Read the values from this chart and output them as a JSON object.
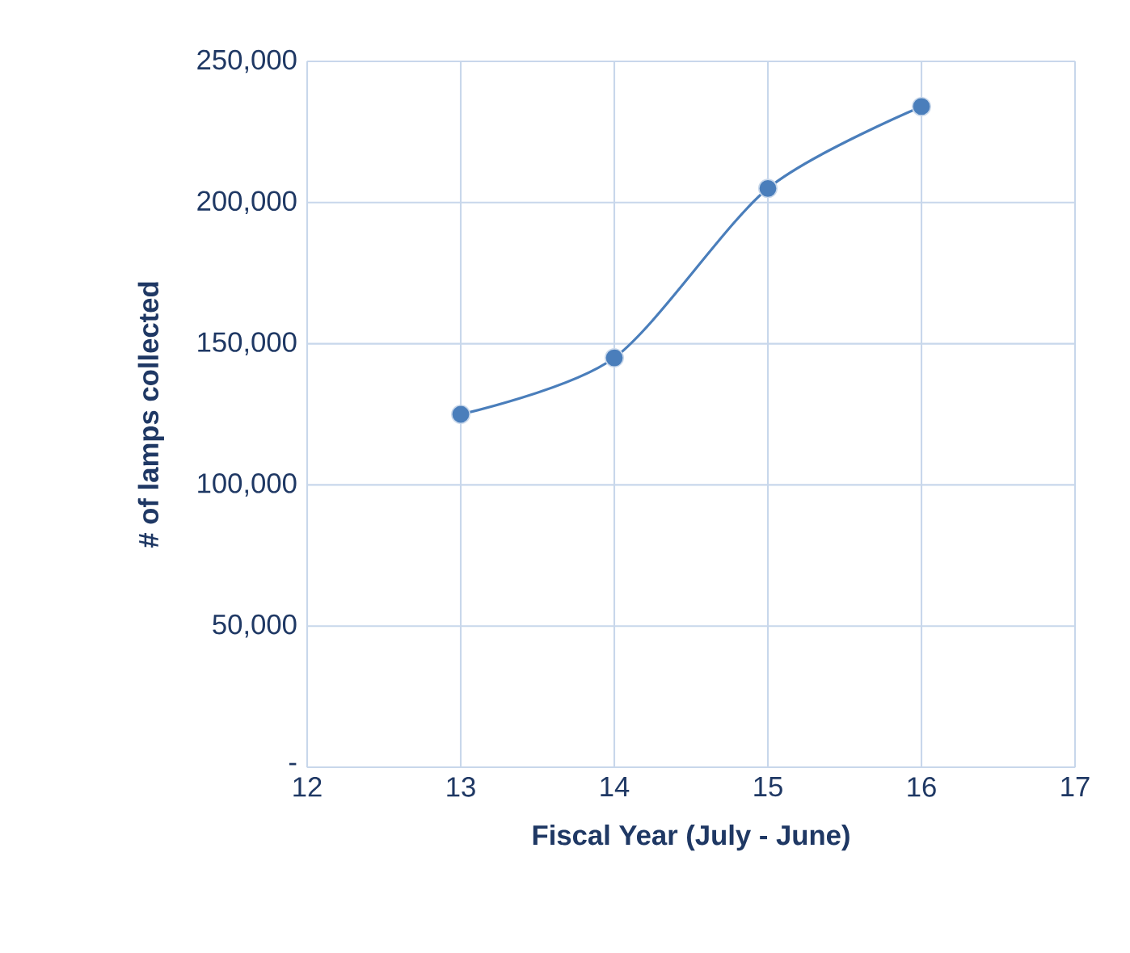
{
  "chart_data": {
    "type": "line",
    "xlabel": "Fiscal Year (July - June)",
    "ylabel": "# of lamps collected",
    "x": [
      13,
      14,
      15,
      16
    ],
    "series": [
      {
        "color": "#4a7ebb",
        "values": [
          125000,
          145000,
          205000,
          234000
        ]
      }
    ],
    "xlim": [
      12,
      17
    ],
    "xticks": [
      12,
      13,
      14,
      15,
      16,
      17
    ],
    "ylim": [
      0,
      250000
    ],
    "yticks": [
      {
        "value": 0,
        "label": "-"
      },
      {
        "value": 50000,
        "label": "50,000"
      },
      {
        "value": 100000,
        "label": "100,000"
      },
      {
        "value": 150000,
        "label": "150,000"
      },
      {
        "value": 200000,
        "label": "200,000"
      },
      {
        "value": 250000,
        "label": "250,000"
      }
    ],
    "grid": true,
    "marker": "circle",
    "line_style": "solid"
  }
}
